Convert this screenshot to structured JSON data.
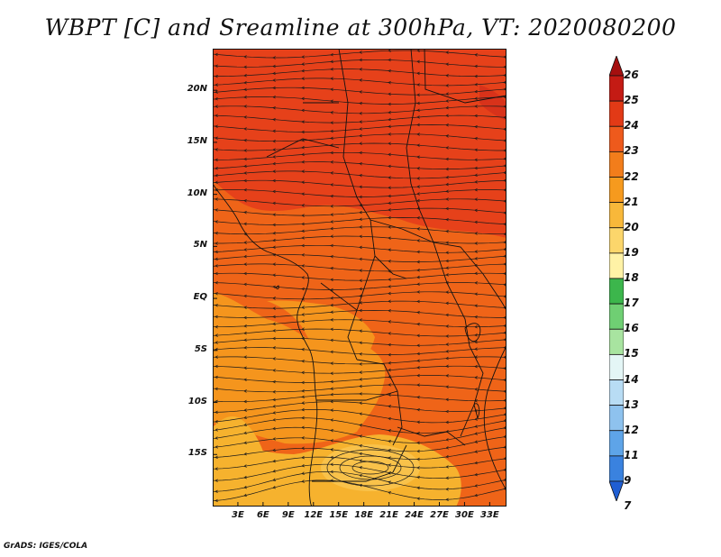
{
  "title": "WBPT [C] and Sreamline at 300hPa, VT: 2020080200",
  "credit": "GrADS: IGES/COLA",
  "map": {
    "lon_range": [
      0,
      35
    ],
    "lat_range": [
      -20,
      24
    ],
    "lat_ticks": [
      {
        "value": 20,
        "label": "20N"
      },
      {
        "value": 15,
        "label": "15N"
      },
      {
        "value": 10,
        "label": "10N"
      },
      {
        "value": 5,
        "label": "5N"
      },
      {
        "value": 0,
        "label": "EQ"
      },
      {
        "value": -5,
        "label": "5S"
      },
      {
        "value": -10,
        "label": "10S"
      },
      {
        "value": -15,
        "label": "15S"
      }
    ],
    "lon_ticks": [
      {
        "value": 3,
        "label": "3E"
      },
      {
        "value": 6,
        "label": "6E"
      },
      {
        "value": 9,
        "label": "9E"
      },
      {
        "value": 12,
        "label": "12E"
      },
      {
        "value": 15,
        "label": "15E"
      },
      {
        "value": 18,
        "label": "18E"
      },
      {
        "value": 21,
        "label": "21E"
      },
      {
        "value": 24,
        "label": "24E"
      },
      {
        "value": 27,
        "label": "27E"
      },
      {
        "value": 30,
        "label": "30E"
      },
      {
        "value": 33,
        "label": "33E"
      }
    ],
    "background_color": "#ef6418",
    "field_regions": [
      {
        "level": "23-24",
        "color": "#e6411a",
        "description": "northern band"
      },
      {
        "level": "21-22",
        "color": "#f5951d",
        "description": "coastal Angola and southern plateau"
      },
      {
        "level": "20-21",
        "color": "#f6b22e",
        "description": "southern anticyclone"
      }
    ],
    "streamline_color": "#1a1a1a",
    "border_color": "#111111"
  },
  "colorbar": {
    "levels": [
      7,
      9,
      11,
      12,
      13,
      14,
      15,
      16,
      17,
      18,
      19,
      20,
      21,
      22,
      23,
      24,
      25,
      26
    ],
    "labels": [
      "26",
      "25",
      "24",
      "23",
      "22",
      "21",
      "20",
      "19",
      "18",
      "17",
      "16",
      "15",
      "14",
      "13",
      "12",
      "11",
      "9",
      "7"
    ],
    "colors": [
      "#a50f0f",
      "#c41b14",
      "#e23a16",
      "#ee5a1c",
      "#f27d1b",
      "#f69a1e",
      "#f8b83a",
      "#fcd66b",
      "#fff2a6",
      "#3cb64c",
      "#6fcf73",
      "#a8e4a0",
      "#e4f6f6",
      "#b8dcf4",
      "#8ec2ee",
      "#5ea4e8",
      "#3a82df",
      "#1f5ed3"
    ]
  }
}
